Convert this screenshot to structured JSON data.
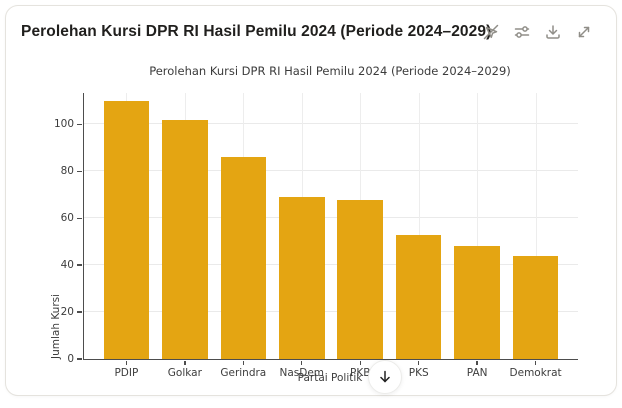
{
  "card": {
    "header": {
      "title": "Perolehan Kursi DPR RI Hasil Pemilu 2024 (Periode 2024–2029)",
      "icons": [
        "interactivity-off",
        "sliders",
        "download",
        "expand"
      ]
    }
  },
  "chart_data": {
    "type": "bar",
    "title": "Perolehan Kursi DPR RI Hasil Pemilu 2024 (Periode 2024–2029)",
    "xlabel": "Partai Politik",
    "ylabel": "Jumlah Kursi",
    "categories": [
      "PDIP",
      "Golkar",
      "Gerindra",
      "NasDem",
      "PKB",
      "PKS",
      "PAN",
      "Demokrat"
    ],
    "values": [
      110,
      102,
      86,
      69,
      68,
      53,
      48,
      44
    ],
    "yticks": [
      0,
      20,
      40,
      60,
      80,
      100
    ],
    "ylim": [
      0,
      113.4
    ],
    "bar_color": "#E4A512",
    "grid": true,
    "legend": "none"
  },
  "scroll_button": {
    "icon": "arrow-down"
  }
}
